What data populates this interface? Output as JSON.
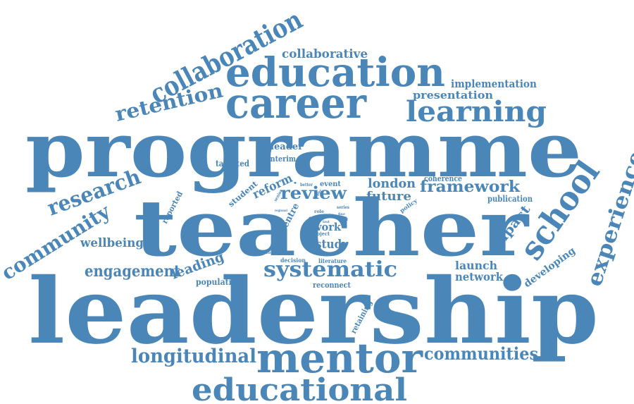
{
  "theme": {
    "word_color": "#4a86b8",
    "background": "#ffffff"
  },
  "words": {
    "leadership": "leadership",
    "programme": "programme",
    "teacher": "teacher",
    "education": "education",
    "career": "career",
    "learning": "learning",
    "collaboration": "collaboration",
    "retention": "retention",
    "mentor": "mentor",
    "educational": "educational",
    "school": "school",
    "experience": "experience",
    "research": "research",
    "community": "community",
    "systematic": "systematic",
    "longitudinal": "longitudinal",
    "communities": "communities",
    "engagement": "engagement",
    "collaborative": "collaborative",
    "implementation": "implementation",
    "presentation": "presentation",
    "framework": "framework",
    "review": "review",
    "london": "london",
    "future": "future",
    "wellbeing": "wellbeing",
    "impact": "impact",
    "launch": "launch",
    "network": "network",
    "leading": "leading",
    "population": "population",
    "reconnect": "reconnect",
    "developing": "developing",
    "study": "study",
    "work": "work",
    "reform": "reform",
    "student": "student",
    "reported": "reported",
    "centre": "centre",
    "report": "report",
    "retaining": "retaining",
    "publication": "publication",
    "coherence": "coherence",
    "leader": "leader",
    "interim": "interim",
    "talented": "talented",
    "event": "event",
    "policy": "policy",
    "decision": "decision",
    "literature": "literature",
    "project": "project",
    "ects": "ects",
    "role": "role",
    "better": "better",
    "series": "series",
    "paper": "paper",
    "fine": "fine",
    "staff": "staff",
    "senior": "senior",
    "rural": "rural",
    "aim": "aim",
    "last": "last",
    "regional": "regional",
    "strategic": "strategic",
    "dot": "•"
  }
}
